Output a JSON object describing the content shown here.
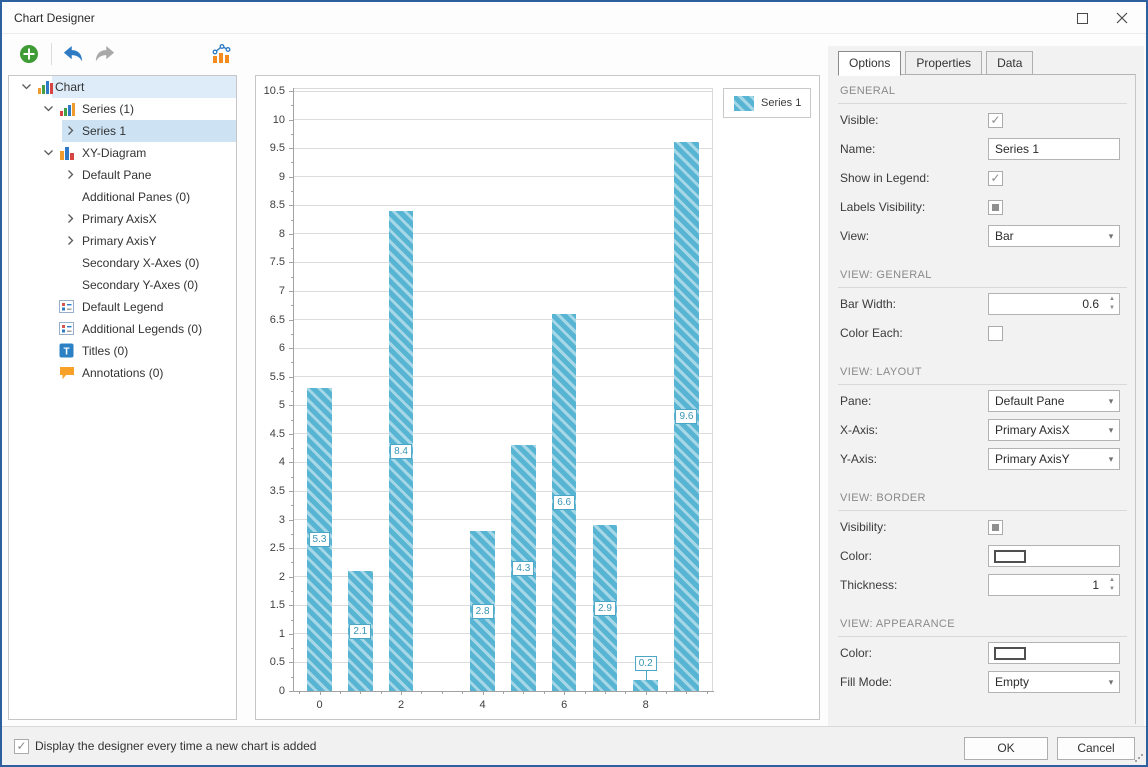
{
  "window": {
    "title": "Chart Designer"
  },
  "titlebar": {
    "buttons": [
      "maximize",
      "close"
    ]
  },
  "toolbar": {
    "buttons": [
      {
        "name": "add-chart-element",
        "icon": "plus-circle-icon"
      },
      {
        "name": "undo",
        "icon": "undo-icon",
        "enabled": true
      },
      {
        "name": "redo",
        "icon": "redo-icon",
        "enabled": false
      },
      {
        "name": "change-chart-type",
        "icon": "chart-type-icon"
      }
    ]
  },
  "tree": {
    "items": [
      {
        "label": "Chart",
        "icon": "chart",
        "chevron": "down",
        "level": 0,
        "highlight": "label"
      },
      {
        "label": "Series (1)",
        "icon": "series",
        "chevron": "down",
        "level": 1,
        "highlight": null
      },
      {
        "label": "Series 1",
        "icon": null,
        "chevron": "right",
        "level": 2,
        "highlight": "row",
        "selected": true
      },
      {
        "label": "XY-Diagram",
        "icon": "xy-diagram",
        "chevron": "down",
        "level": 1,
        "highlight": null
      },
      {
        "label": "Default Pane",
        "icon": null,
        "chevron": "right",
        "level": 2,
        "highlight": null
      },
      {
        "label": "Additional Panes (0)",
        "icon": null,
        "chevron": "none",
        "level": 2,
        "highlight": null
      },
      {
        "label": "Primary AxisX",
        "icon": null,
        "chevron": "right",
        "level": 2,
        "highlight": null
      },
      {
        "label": "Primary AxisY",
        "icon": null,
        "chevron": "right",
        "level": 2,
        "highlight": null
      },
      {
        "label": "Secondary X-Axes (0)",
        "icon": null,
        "chevron": "none",
        "level": 2,
        "highlight": null
      },
      {
        "label": "Secondary Y-Axes (0)",
        "icon": null,
        "chevron": "none",
        "level": 2,
        "highlight": null
      },
      {
        "label": "Default Legend",
        "icon": "legend",
        "chevron": "none",
        "level": 1,
        "highlight": null
      },
      {
        "label": "Additional Legends (0)",
        "icon": "legend",
        "chevron": "none",
        "level": 1,
        "highlight": null
      },
      {
        "label": "Titles (0)",
        "icon": "title",
        "chevron": "none",
        "level": 1,
        "highlight": null
      },
      {
        "label": "Annotations (0)",
        "icon": "annotation",
        "chevron": "none",
        "level": 1,
        "highlight": null
      }
    ]
  },
  "chart_data": {
    "type": "bar",
    "series_name": "Series 1",
    "x": [
      0,
      1,
      2,
      4,
      5,
      6,
      7,
      8,
      9
    ],
    "values": [
      5.3,
      2.1,
      8.4,
      2.8,
      4.3,
      6.6,
      2.9,
      0.2,
      9.6
    ],
    "point_labels": [
      "5.3",
      "2.1",
      "8.4",
      "2.8",
      "4.3",
      "6.6",
      "2.9",
      "0.2",
      "9.6"
    ],
    "x_tick_labels": [
      "0",
      "2",
      "4",
      "6",
      "8"
    ],
    "x_major_ticks": [
      0,
      2,
      4,
      6,
      8
    ],
    "x_range": [
      -0.65,
      9.65
    ],
    "y_min": 0,
    "y_max": 10.5,
    "y_step": 0.5,
    "bar_width_units": 0.6,
    "grid": "horizontal-major",
    "legend_position": "top-right",
    "bar_color": "#57b4d2",
    "bar_stripe_color": "#a6d7e6",
    "label_border_color": "#4aa6c6",
    "label_text_color": "#3694b5"
  },
  "options_panel": {
    "tabs": [
      {
        "label": "Options",
        "active": true
      },
      {
        "label": "Properties",
        "active": false
      },
      {
        "label": "Data",
        "active": false
      }
    ],
    "sections": [
      {
        "header": "GENERAL",
        "rows": [
          {
            "label": "Visible:",
            "control": "checkbox",
            "state": "checked"
          },
          {
            "label": "Name:",
            "control": "text",
            "value": "Series 1"
          },
          {
            "label": "Show in Legend:",
            "control": "checkbox",
            "state": "checked"
          },
          {
            "label": "Labels Visibility:",
            "control": "checkbox",
            "state": "indeterminate"
          },
          {
            "label": "View:",
            "control": "dropdown",
            "value": "Bar"
          }
        ]
      },
      {
        "header": "VIEW: GENERAL",
        "rows": [
          {
            "label": "Bar Width:",
            "control": "spinner",
            "value": "0.6"
          },
          {
            "label": "Color Each:",
            "control": "checkbox",
            "state": "unchecked"
          }
        ]
      },
      {
        "header": "VIEW: LAYOUT",
        "rows": [
          {
            "label": "Pane:",
            "control": "dropdown",
            "value": "Default Pane"
          },
          {
            "label": "X-Axis:",
            "control": "dropdown",
            "value": "Primary AxisX"
          },
          {
            "label": "Y-Axis:",
            "control": "dropdown",
            "value": "Primary AxisY"
          }
        ]
      },
      {
        "header": "VIEW: BORDER",
        "rows": [
          {
            "label": "Visibility:",
            "control": "checkbox",
            "state": "indeterminate"
          },
          {
            "label": "Color:",
            "control": "colorbox",
            "value": "empty"
          },
          {
            "label": "Thickness:",
            "control": "spinner",
            "value": "1"
          }
        ]
      },
      {
        "header": "VIEW: APPEARANCE",
        "rows": [
          {
            "label": "Color:",
            "control": "colorbox",
            "value": "empty"
          },
          {
            "label": "Fill Mode:",
            "control": "dropdown",
            "value": "Empty"
          }
        ]
      }
    ]
  },
  "footer": {
    "checkbox_label": "Display the designer every time a new chart is added",
    "checkbox_state": "checked",
    "ok_label": "OK",
    "cancel_label": "Cancel"
  },
  "colors": {
    "window_border": "#2e5f9e",
    "selection_bg": "#cde3f3",
    "hover_bg": "#ddecf8",
    "accent_blue": "#2e7bc4",
    "toolbar_green": "#3e9b35",
    "toolbar_orange": "#f58a1f"
  }
}
